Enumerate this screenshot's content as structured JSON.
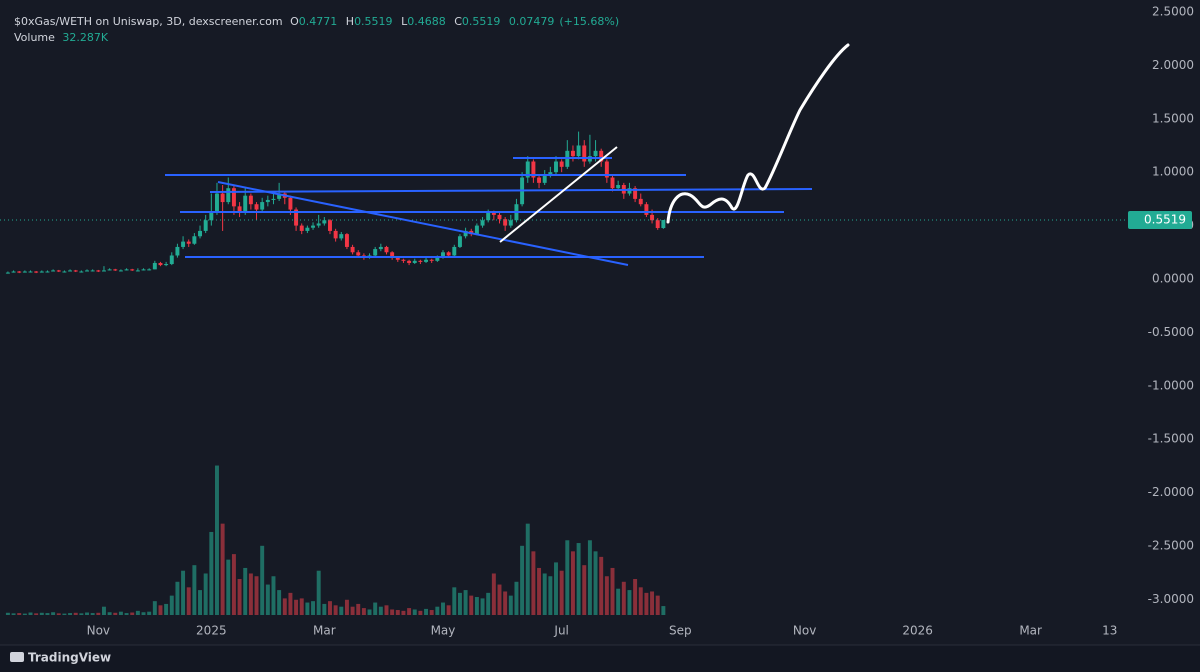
{
  "chart_data": {
    "type": "candlestick",
    "header": {
      "title": "$0xGas/WETH on Uniswap, 3D, dexscreener.com",
      "o_label": "O",
      "o": 0.4771,
      "h_label": "H",
      "h": 0.5519,
      "l_label": "L",
      "l": 0.4688,
      "c_label": "C",
      "c": 0.5519,
      "change": 0.07479,
      "change_pct": 15.68,
      "change_pct_label": "(+15.68%)",
      "volume_title": "Volume",
      "volume_value": 32.287,
      "volume_value_label": "32.287K"
    },
    "brand": "TradingView",
    "up_color": "#22ab94",
    "down_color": "#f23645",
    "volume_up_color": "#1f6e64",
    "volume_down_color": "#8a2f3a",
    "grid": false,
    "xlim": [
      -1.4,
      197.7
    ],
    "xticks": [
      {
        "value": 16,
        "label": "Nov"
      },
      {
        "value": 36,
        "label": "2025"
      },
      {
        "value": 56,
        "label": "Mar"
      },
      {
        "value": 77,
        "label": "May"
      },
      {
        "value": 98,
        "label": "Jul"
      },
      {
        "value": 119,
        "label": "Sep"
      },
      {
        "value": 141,
        "label": "Nov"
      },
      {
        "value": 161,
        "label": "2026"
      },
      {
        "value": 181,
        "label": "Mar"
      },
      {
        "value": 195,
        "label": "13"
      }
    ],
    "ylim": [
      -3.146,
      2.612
    ],
    "yticks": [
      {
        "value": 2.5,
        "label": "2.5000"
      },
      {
        "value": 2,
        "label": "2.0000"
      },
      {
        "value": 1.5,
        "label": "1.5000"
      },
      {
        "value": 1,
        "label": "1.0000"
      },
      {
        "value": 0.5,
        "label": "0.5000"
      },
      {
        "value": 0,
        "label": "0.0000"
      },
      {
        "value": -0.5,
        "label": "-0.5000"
      },
      {
        "value": -1,
        "label": "-1.0000"
      },
      {
        "value": -1.5,
        "label": "-1.5000"
      },
      {
        "value": -2,
        "label": "-2.0000"
      },
      {
        "value": -2.5,
        "label": "-2.5000"
      },
      {
        "value": -3,
        "label": "-3.0000"
      }
    ],
    "volume_lim": [
      0,
      560
    ],
    "candles": [
      [
        0.06,
        0.07,
        0.05,
        0.06
      ],
      [
        0.06,
        0.08,
        0.06,
        0.07
      ],
      [
        0.07,
        0.075,
        0.055,
        0.06
      ],
      [
        0.06,
        0.08,
        0.06,
        0.07
      ],
      [
        0.07,
        0.08,
        0.06,
        0.07
      ],
      [
        0.07,
        0.075,
        0.055,
        0.06
      ],
      [
        0.06,
        0.08,
        0.06,
        0.07
      ],
      [
        0.07,
        0.08,
        0.06,
        0.07
      ],
      [
        0.07,
        0.09,
        0.07,
        0.08
      ],
      [
        0.08,
        0.085,
        0.065,
        0.07
      ],
      [
        0.07,
        0.08,
        0.06,
        0.07
      ],
      [
        0.07,
        0.09,
        0.07,
        0.08
      ],
      [
        0.08,
        0.085,
        0.065,
        0.07
      ],
      [
        0.07,
        0.08,
        0.06,
        0.07
      ],
      [
        0.07,
        0.09,
        0.07,
        0.08
      ],
      [
        0.08,
        0.09,
        0.07,
        0.08
      ],
      [
        0.08,
        0.085,
        0.065,
        0.07
      ],
      [
        0.07,
        0.12,
        0.07,
        0.08
      ],
      [
        0.08,
        0.1,
        0.08,
        0.09
      ],
      [
        0.09,
        0.095,
        0.075,
        0.08
      ],
      [
        0.08,
        0.09,
        0.07,
        0.08
      ],
      [
        0.08,
        0.1,
        0.08,
        0.09
      ],
      [
        0.09,
        0.095,
        0.075,
        0.08
      ],
      [
        0.08,
        0.1,
        0.07,
        0.08
      ],
      [
        0.08,
        0.1,
        0.08,
        0.09
      ],
      [
        0.09,
        0.1,
        0.08,
        0.09
      ],
      [
        0.09,
        0.17,
        0.09,
        0.15
      ],
      [
        0.15,
        0.16,
        0.12,
        0.13
      ],
      [
        0.13,
        0.16,
        0.12,
        0.14
      ],
      [
        0.14,
        0.25,
        0.13,
        0.22
      ],
      [
        0.22,
        0.33,
        0.2,
        0.3
      ],
      [
        0.3,
        0.4,
        0.28,
        0.35
      ],
      [
        0.35,
        0.37,
        0.3,
        0.33
      ],
      [
        0.33,
        0.43,
        0.32,
        0.4
      ],
      [
        0.4,
        0.5,
        0.38,
        0.45
      ],
      [
        0.45,
        0.6,
        0.43,
        0.55
      ],
      [
        0.55,
        0.8,
        0.5,
        0.62
      ],
      [
        0.62,
        0.9,
        0.6,
        0.8
      ],
      [
        0.8,
        0.88,
        0.45,
        0.72
      ],
      [
        0.72,
        0.95,
        0.7,
        0.85
      ],
      [
        0.85,
        0.88,
        0.6,
        0.68
      ],
      [
        0.68,
        0.72,
        0.58,
        0.62
      ],
      [
        0.62,
        0.85,
        0.6,
        0.78
      ],
      [
        0.78,
        0.8,
        0.65,
        0.7
      ],
      [
        0.7,
        0.72,
        0.55,
        0.65
      ],
      [
        0.65,
        0.76,
        0.62,
        0.72
      ],
      [
        0.72,
        0.78,
        0.68,
        0.74
      ],
      [
        0.74,
        0.82,
        0.7,
        0.75
      ],
      [
        0.75,
        0.9,
        0.73,
        0.8
      ],
      [
        0.8,
        0.82,
        0.7,
        0.76
      ],
      [
        0.76,
        0.78,
        0.6,
        0.65
      ],
      [
        0.65,
        0.67,
        0.45,
        0.5
      ],
      [
        0.5,
        0.52,
        0.42,
        0.45
      ],
      [
        0.45,
        0.5,
        0.43,
        0.48
      ],
      [
        0.48,
        0.53,
        0.46,
        0.5
      ],
      [
        0.5,
        0.6,
        0.48,
        0.52
      ],
      [
        0.52,
        0.58,
        0.5,
        0.55
      ],
      [
        0.55,
        0.56,
        0.42,
        0.45
      ],
      [
        0.45,
        0.47,
        0.35,
        0.38
      ],
      [
        0.38,
        0.44,
        0.36,
        0.42
      ],
      [
        0.42,
        0.43,
        0.28,
        0.3
      ],
      [
        0.3,
        0.32,
        0.23,
        0.25
      ],
      [
        0.25,
        0.27,
        0.2,
        0.22
      ],
      [
        0.22,
        0.24,
        0.18,
        0.2
      ],
      [
        0.2,
        0.24,
        0.19,
        0.22
      ],
      [
        0.22,
        0.3,
        0.21,
        0.28
      ],
      [
        0.28,
        0.33,
        0.26,
        0.3
      ],
      [
        0.3,
        0.31,
        0.23,
        0.25
      ],
      [
        0.25,
        0.26,
        0.18,
        0.2
      ],
      [
        0.2,
        0.21,
        0.16,
        0.18
      ],
      [
        0.18,
        0.19,
        0.15,
        0.17
      ],
      [
        0.17,
        0.18,
        0.13,
        0.15
      ],
      [
        0.15,
        0.19,
        0.14,
        0.17
      ],
      [
        0.17,
        0.18,
        0.14,
        0.16
      ],
      [
        0.16,
        0.2,
        0.15,
        0.18
      ],
      [
        0.18,
        0.19,
        0.15,
        0.17
      ],
      [
        0.17,
        0.22,
        0.16,
        0.2
      ],
      [
        0.2,
        0.27,
        0.19,
        0.25
      ],
      [
        0.25,
        0.26,
        0.2,
        0.22
      ],
      [
        0.22,
        0.32,
        0.21,
        0.3
      ],
      [
        0.3,
        0.42,
        0.29,
        0.4
      ],
      [
        0.4,
        0.48,
        0.38,
        0.45
      ],
      [
        0.45,
        0.47,
        0.4,
        0.42
      ],
      [
        0.42,
        0.52,
        0.41,
        0.5
      ],
      [
        0.5,
        0.58,
        0.48,
        0.55
      ],
      [
        0.55,
        0.65,
        0.53,
        0.62
      ],
      [
        0.62,
        0.64,
        0.55,
        0.6
      ],
      [
        0.6,
        0.62,
        0.52,
        0.56
      ],
      [
        0.56,
        0.58,
        0.45,
        0.5
      ],
      [
        0.5,
        0.6,
        0.48,
        0.55
      ],
      [
        0.55,
        0.75,
        0.53,
        0.7
      ],
      [
        0.7,
        1.0,
        0.68,
        0.95
      ],
      [
        0.95,
        1.15,
        0.9,
        1.1
      ],
      [
        1.1,
        1.12,
        0.9,
        0.95
      ],
      [
        0.95,
        0.98,
        0.85,
        0.9
      ],
      [
        0.9,
        1.02,
        0.88,
        0.98
      ],
      [
        0.98,
        1.05,
        0.95,
        1.0
      ],
      [
        1.0,
        1.15,
        0.98,
        1.1
      ],
      [
        1.1,
        1.12,
        1.0,
        1.05
      ],
      [
        1.05,
        1.3,
        1.03,
        1.2
      ],
      [
        1.2,
        1.25,
        1.1,
        1.15
      ],
      [
        1.15,
        1.38,
        1.12,
        1.25
      ],
      [
        1.25,
        1.3,
        1.05,
        1.1
      ],
      [
        1.1,
        1.35,
        1.08,
        1.15
      ],
      [
        1.15,
        1.3,
        1.1,
        1.2
      ],
      [
        1.2,
        1.22,
        1.05,
        1.1
      ],
      [
        1.1,
        1.12,
        0.9,
        0.95
      ],
      [
        0.95,
        0.98,
        0.82,
        0.85
      ],
      [
        0.85,
        0.92,
        0.83,
        0.88
      ],
      [
        0.88,
        0.9,
        0.75,
        0.8
      ],
      [
        0.8,
        0.9,
        0.78,
        0.85
      ],
      [
        0.85,
        0.87,
        0.72,
        0.75
      ],
      [
        0.75,
        0.8,
        0.68,
        0.7
      ],
      [
        0.7,
        0.72,
        0.58,
        0.6
      ],
      [
        0.6,
        0.65,
        0.52,
        0.55
      ],
      [
        0.55,
        0.57,
        0.46,
        0.4771
      ],
      [
        0.4771,
        0.5519,
        0.4688,
        0.5519
      ]
    ],
    "volume": [
      8,
      6,
      7,
      5,
      9,
      6,
      8,
      7,
      10,
      6,
      5,
      7,
      8,
      6,
      9,
      7,
      8,
      30,
      10,
      8,
      12,
      7,
      9,
      15,
      10,
      12,
      50,
      35,
      40,
      70,
      120,
      160,
      100,
      180,
      90,
      150,
      300,
      540,
      330,
      200,
      220,
      130,
      170,
      150,
      140,
      250,
      110,
      140,
      90,
      60,
      80,
      55,
      60,
      45,
      50,
      160,
      40,
      50,
      35,
      30,
      55,
      30,
      40,
      25,
      20,
      45,
      30,
      35,
      20,
      18,
      15,
      25,
      20,
      15,
      22,
      18,
      30,
      45,
      35,
      100,
      80,
      90,
      70,
      65,
      60,
      80,
      150,
      110,
      85,
      70,
      120,
      250,
      330,
      230,
      170,
      150,
      140,
      190,
      160,
      270,
      230,
      260,
      180,
      270,
      230,
      210,
      140,
      170,
      95,
      120,
      90,
      130,
      100,
      80,
      85,
      70,
      32.287
    ]
  }
}
